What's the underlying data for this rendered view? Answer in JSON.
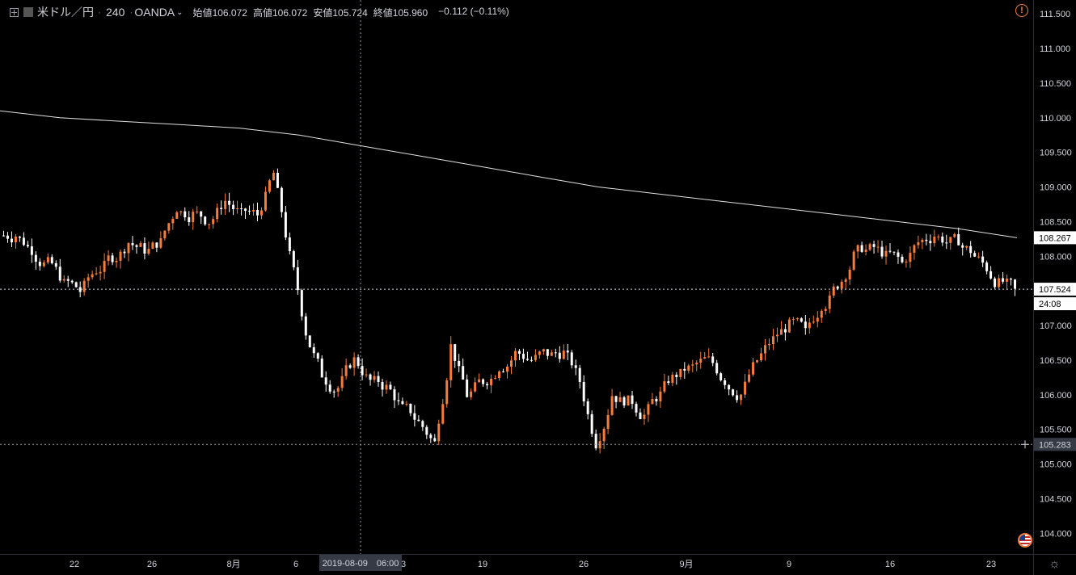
{
  "header": {
    "symbol": "米ドル／円",
    "interval": "240",
    "source": "OANDA",
    "open_label": "始値",
    "open_value": "106.072",
    "high_label": "高値",
    "high_value": "106.072",
    "low_label": "安値",
    "low_value": "105.724",
    "close_label": "終値",
    "close_value": "105.960",
    "change": "−0.112 (−0.11%)"
  },
  "crosshair": {
    "date_label": "2019-08-09　06:00",
    "price_label": "105.283"
  },
  "price_badges": {
    "ma_value": "108.267",
    "last_price": "107.524",
    "countdown": "24:08"
  },
  "colors": {
    "up": "#f57c3a",
    "down": "#ffffff",
    "background": "#000000",
    "grid_text": "#d1d4dc",
    "ma_line": "#e0e0e0",
    "crosshair": "#9598a1"
  },
  "icons": {
    "warning": "warning-icon",
    "settings": "gear-icon",
    "flag": "us-flag-icon",
    "expand": "expand-icon"
  },
  "chart_data": {
    "type": "candlestick",
    "ylim": [
      103.7,
      111.7
    ],
    "y_ticks": [
      "111.500",
      "111.000",
      "110.500",
      "110.000",
      "109.500",
      "109.000",
      "108.500",
      "108.000",
      "107.500",
      "107.000",
      "106.500",
      "106.000",
      "105.500",
      "105.000",
      "104.500",
      "104.000"
    ],
    "x_ticks": [
      "22",
      "26",
      "8月",
      "6",
      "13",
      "19",
      "26",
      "9月",
      "9",
      "16",
      "23"
    ],
    "close_series": [
      108.3,
      108.1,
      107.9,
      107.6,
      107.5,
      107.8,
      108.0,
      108.2,
      108.1,
      108.2,
      108.7,
      108.6,
      108.5,
      108.8,
      108.6,
      108.6,
      109.2,
      108.0,
      106.9,
      106.3,
      106.1,
      106.5,
      106.2,
      106.1,
      105.8,
      105.6,
      105.3,
      106.7,
      106.0,
      106.2,
      106.4,
      106.6,
      106.5,
      106.6,
      106.6,
      106.2,
      105.3,
      106.0,
      105.9,
      105.7,
      106.0,
      106.3,
      106.4,
      106.5,
      106.2,
      106.0,
      106.5,
      106.8,
      107.0,
      106.9,
      107.3,
      107.6,
      108.0,
      108.1,
      108.0,
      107.9,
      108.2,
      108.3,
      108.2,
      108.1,
      107.9,
      107.6,
      107.5
    ],
    "ma_series": [
      110.1,
      110.0,
      109.95,
      109.9,
      109.85,
      109.75,
      109.6,
      109.45,
      109.3,
      109.15,
      109.0,
      108.9,
      108.8,
      108.7,
      108.6,
      108.5,
      108.4,
      108.267
    ],
    "horizontal_lines": [
      107.524,
      105.283
    ],
    "crosshair_x_label": "2019-08-09 06:00"
  }
}
